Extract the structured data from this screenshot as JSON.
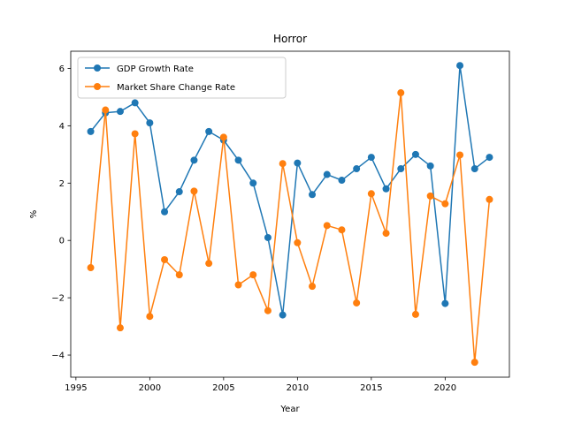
{
  "chart_data": {
    "type": "line",
    "title": "Horror",
    "xlabel": "Year",
    "ylabel": "%",
    "xlim": [
      1994.65,
      2024.35
    ],
    "ylim": [
      -4.77,
      6.6
    ],
    "x_ticks": [
      1995,
      2000,
      2005,
      2010,
      2015,
      2020
    ],
    "y_ticks": [
      -4,
      -2,
      0,
      2,
      4,
      6
    ],
    "grid": false,
    "legend_position": "upper-left",
    "x": [
      1996,
      1997,
      1998,
      1999,
      2000,
      2001,
      2002,
      2003,
      2004,
      2005,
      2006,
      2007,
      2008,
      2009,
      2010,
      2011,
      2012,
      2013,
      2014,
      2015,
      2016,
      2017,
      2018,
      2019,
      2020,
      2021,
      2022,
      2023
    ],
    "series": [
      {
        "name": "GDP Growth Rate",
        "color": "#1f77b4",
        "values": [
          3.8,
          4.45,
          4.5,
          4.8,
          4.1,
          1.0,
          1.7,
          2.8,
          3.8,
          3.5,
          2.8,
          2.0,
          0.1,
          -2.6,
          2.7,
          1.6,
          2.3,
          2.1,
          2.5,
          2.9,
          1.8,
          2.5,
          3.0,
          2.6,
          -2.2,
          6.1,
          2.5,
          2.9
        ]
      },
      {
        "name": "Market Share Change Rate",
        "color": "#ff7f0e",
        "values": [
          -0.95,
          4.55,
          -3.05,
          3.72,
          -2.65,
          -0.67,
          -1.2,
          1.72,
          -0.8,
          3.6,
          -1.55,
          -1.2,
          -2.45,
          2.68,
          -0.08,
          -1.6,
          0.52,
          0.37,
          -2.18,
          1.63,
          0.25,
          5.15,
          -2.58,
          1.55,
          1.28,
          2.98,
          -4.25,
          1.43
        ]
      }
    ]
  }
}
